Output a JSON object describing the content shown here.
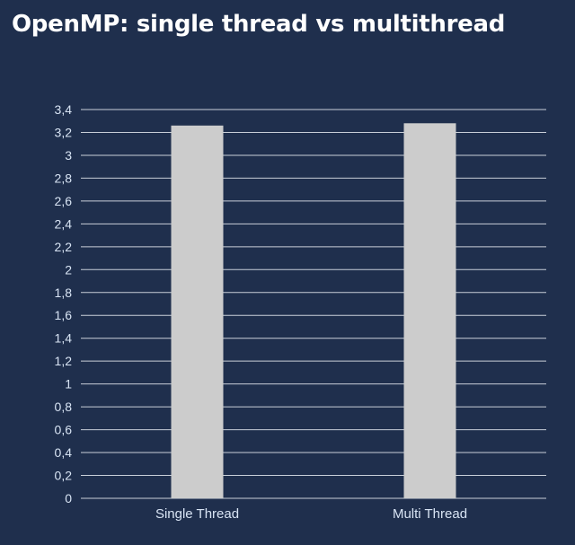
{
  "chart_data": {
    "type": "bar",
    "title": "OpenMP: single thread vs multithread",
    "categories": [
      "Single Thread",
      "Multi Thread"
    ],
    "values": [
      3.26,
      3.28
    ],
    "ylim": [
      0,
      3.4
    ],
    "yticks": [
      "0",
      "0,2",
      "0,4",
      "0,6",
      "0,8",
      "1",
      "1,2",
      "1,4",
      "1,6",
      "1,8",
      "2",
      "2,2",
      "2,4",
      "2,6",
      "2,8",
      "3",
      "3,2",
      "3,4"
    ],
    "ytick_values": [
      0,
      0.2,
      0.4,
      0.6,
      0.8,
      1,
      1.2,
      1.4,
      1.6,
      1.8,
      2,
      2.2,
      2.4,
      2.6,
      2.8,
      3,
      3.2,
      3.4
    ],
    "grid": true,
    "legend": "none",
    "colors": {
      "background": "#1f2f4d",
      "bar": "#cccccc",
      "grid": "#c9cfd9",
      "text": "#d8e4f4"
    }
  }
}
